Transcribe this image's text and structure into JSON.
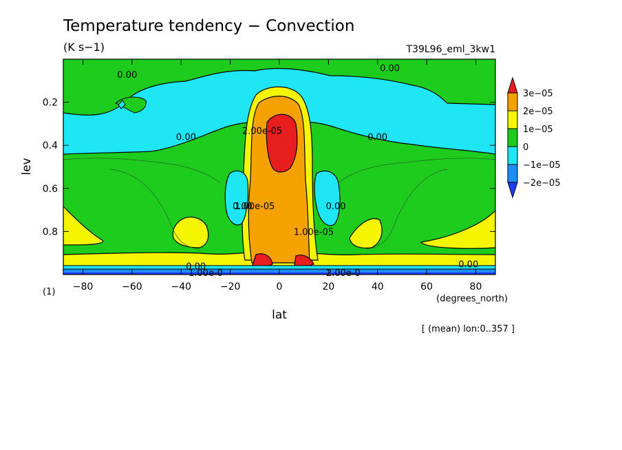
{
  "chart_data": {
    "type": "heatmap",
    "title": "Temperature tendency − Convection",
    "units": "(K s−1)",
    "run_label": "T39L96_eml_3kw1",
    "xlabel": "lat",
    "x_units": "(degrees_north)",
    "ylabel": "lev",
    "y_units": "(1)",
    "footer_note": "[ (mean) lon:0..357 ]",
    "xlim": [
      -88,
      88
    ],
    "ylim": [
      1.0,
      0.0
    ],
    "x_ticks": [
      "−80",
      "−60",
      "−40",
      "−20",
      "0",
      "20",
      "40",
      "60",
      "80"
    ],
    "y_ticks": [
      "0.2",
      "0.4",
      "0.6",
      "0.8"
    ],
    "colorbar": {
      "levels": [
        "3e−05",
        "2e−05",
        "1e−05",
        "0",
        "−1e−05",
        "−2e−05"
      ],
      "colors": [
        "#e81e1e",
        "#f5a200",
        "#f5f500",
        "#1ecc1e",
        "#1ee6f5",
        "#1e8cf5",
        "#1e3cf5"
      ]
    },
    "contour_labels": [
      {
        "text": "0.00",
        "lat": -62,
        "lev": 0.07
      },
      {
        "text": "0.00",
        "lat": 45,
        "lev": 0.04
      },
      {
        "text": "0.00",
        "lat": -38,
        "lev": 0.36
      },
      {
        "text": "0.00",
        "lat": 40,
        "lev": 0.36
      },
      {
        "text": "2.00e-05",
        "lat": -7,
        "lev": 0.33
      },
      {
        "text": "1.00e-05",
        "lat": -10,
        "lev": 0.68
      },
      {
        "text": "0.00",
        "lat": -15,
        "lev": 0.68
      },
      {
        "text": "1.00e-05",
        "lat": 14,
        "lev": 0.8
      },
      {
        "text": "0.00",
        "lat": 23,
        "lev": 0.68
      },
      {
        "text": "0.00",
        "lat": -34,
        "lev": 0.96
      },
      {
        "text": "1.00e-0",
        "lat": -30,
        "lev": 0.99
      },
      {
        "text": "0.00",
        "lat": 77,
        "lev": 0.95
      },
      {
        "text": "2.00e-0",
        "lat": 26,
        "lev": 0.99
      }
    ]
  }
}
